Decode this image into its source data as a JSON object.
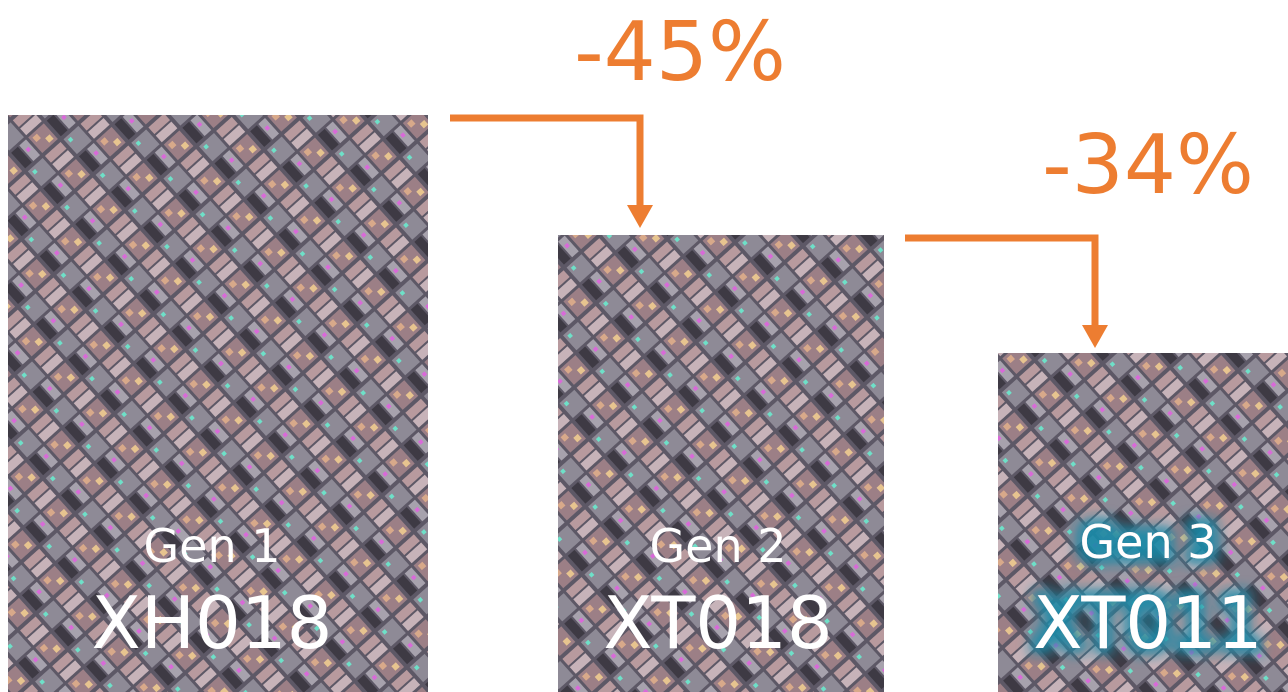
{
  "panels": [
    {
      "generation": "Gen 1",
      "name": "XH018"
    },
    {
      "generation": "Gen 2",
      "name": "XT018"
    },
    {
      "generation": "Gen 3",
      "name": "XT011"
    }
  ],
  "reductions": [
    "-45%",
    "-34%"
  ]
}
